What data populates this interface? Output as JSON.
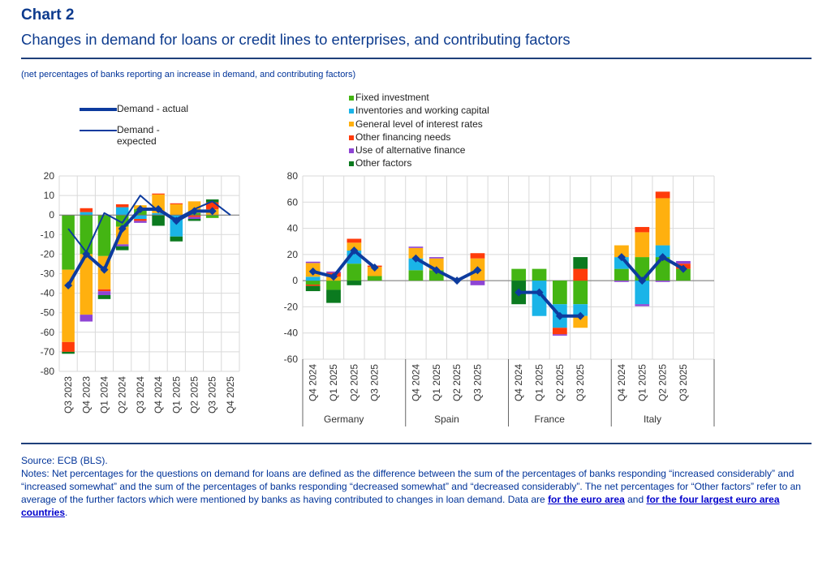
{
  "header": {
    "label": "Chart 2",
    "title": "Changes in demand for loans or credit lines to enterprises, and contributing factors",
    "subtitle": "(net percentages of banks reporting an increase in demand, and contributing factors)"
  },
  "legend": {
    "lines": [
      {
        "name": "Demand - actual",
        "color": "#0d3b9e"
      },
      {
        "name": "Demand -",
        "name2": "expected",
        "color": "#0d3b9e"
      }
    ],
    "bars": [
      {
        "name": "Fixed investment",
        "color": "#44b513"
      },
      {
        "name": "Inventories and working capital",
        "color": "#1ab4e8"
      },
      {
        "name": "General level of interest rates",
        "color": "#ffb00f"
      },
      {
        "name": "Other financing needs",
        "color": "#ff3b0a"
      },
      {
        "name": "Use of alternative finance",
        "color": "#8e44d4"
      },
      {
        "name": "Other factors",
        "color": "#0b7a1f"
      }
    ]
  },
  "chart_data": [
    {
      "type": "bar",
      "stacked": true,
      "title": "",
      "ylim": [
        -80,
        20
      ],
      "yticks": [
        20,
        10,
        0,
        -10,
        -20,
        -30,
        -40,
        -50,
        -60,
        -70,
        -80
      ],
      "grid": true,
      "categories": [
        "Q3 2023",
        "Q4 2023",
        "Q1 2024",
        "Q2 2024",
        "Q3 2024",
        "Q4 2024",
        "Q1 2025",
        "Q2 2025",
        "Q3 2025",
        "Q4 2025"
      ],
      "series": [
        {
          "name": "Fixed investment",
          "values": [
            -28,
            -20,
            -21,
            -6,
            3,
            0,
            0,
            1,
            -1.5,
            null
          ]
        },
        {
          "name": "Inventories and working capital",
          "values": [
            0,
            1.5,
            0,
            4,
            -2,
            1,
            -11,
            0,
            0,
            null
          ]
        },
        {
          "name": "General level of interest rates",
          "values": [
            -37,
            -31,
            -17,
            -9,
            2,
            9.5,
            5.5,
            6,
            3,
            null
          ]
        },
        {
          "name": "Other financing needs",
          "values": [
            -5,
            2,
            -1,
            1.5,
            -1,
            0.5,
            0.5,
            -1,
            3.5,
            null
          ]
        },
        {
          "name": "Use of alternative finance",
          "values": [
            0,
            -3.5,
            -2,
            -1,
            -1,
            0,
            0,
            -1,
            0,
            null
          ]
        },
        {
          "name": "Other factors",
          "values": [
            -1,
            0,
            -2,
            -2,
            0,
            -5.5,
            -2.5,
            -1,
            1.5,
            null
          ]
        }
      ],
      "lines": [
        {
          "name": "Demand - actual",
          "values": [
            -36,
            -20,
            -28,
            -7,
            3,
            3,
            -3,
            2,
            2,
            null
          ]
        },
        {
          "name": "Demand - expected",
          "values": [
            -7,
            -19,
            1,
            -4,
            10,
            2,
            -2,
            3,
            7,
            0
          ]
        }
      ]
    },
    {
      "type": "bar",
      "stacked": true,
      "title": "",
      "ylim": [
        -60,
        80
      ],
      "yticks": [
        80,
        60,
        40,
        20,
        0,
        -20,
        -40,
        -60
      ],
      "grid": true,
      "quarters": [
        "Q4 2024",
        "Q1 2025",
        "Q2 2025",
        "Q3 2025"
      ],
      "groups": [
        {
          "name": "Germany",
          "series": [
            [
              -3,
              -7,
              13,
              3.5
            ],
            [
              3,
              0,
              10,
              0
            ],
            [
              10.5,
              3,
              6,
              7
            ],
            [
              -1,
              3,
              3,
              1
            ],
            [
              1,
              1,
              0,
              0
            ],
            [
              -4,
              -10,
              -3.5,
              0
            ]
          ],
          "actual": [
            7,
            3,
            23,
            10
          ]
        },
        {
          "name": "Spain",
          "series": [
            [
              8,
              8,
              0,
              0
            ],
            [
              9,
              0,
              0,
              0
            ],
            [
              8,
              9,
              0,
              17
            ],
            [
              0,
              0,
              0,
              4
            ],
            [
              1,
              1,
              0,
              -3.5
            ],
            [
              0,
              0,
              0,
              0
            ]
          ],
          "actual": [
            17,
            8,
            0,
            8
          ]
        },
        {
          "name": "France",
          "series": [
            [
              9,
              9,
              -18,
              -18
            ],
            [
              0,
              -27,
              -18,
              -9
            ],
            [
              0,
              0,
              0,
              -9
            ],
            [
              0,
              0,
              -5,
              9
            ],
            [
              0,
              0,
              -1,
              0
            ],
            [
              -18,
              0,
              0,
              9
            ]
          ],
          "actual": [
            -9,
            -9,
            -27,
            -27
          ]
        },
        {
          "name": "Italy",
          "series": [
            [
              9,
              18,
              18,
              9
            ],
            [
              9,
              -18,
              9,
              0
            ],
            [
              9,
              19,
              36,
              0
            ],
            [
              0,
              4,
              5,
              4
            ],
            [
              -1,
              -1.5,
              -1,
              2
            ],
            [
              0,
              0,
              0,
              0
            ]
          ],
          "actual": [
            18,
            0,
            18,
            9
          ]
        }
      ]
    }
  ],
  "footer": {
    "source": "Source: ECB (BLS).",
    "notes": "Notes: Net percentages for the questions on demand for loans are defined as the difference between the sum of the percentages of banks responding “increased considerably” and “increased somewhat” and the sum of the percentages of banks responding “decreased somewhat” and “decreased considerably”. The net percentages for “Other factors” refer to an average of the further factors which were mentioned by banks as having contributed to changes in loan demand. Data are ",
    "link1": "for the euro area",
    "and": " and ",
    "link2": "for the four largest euro area countries",
    "end": "."
  }
}
